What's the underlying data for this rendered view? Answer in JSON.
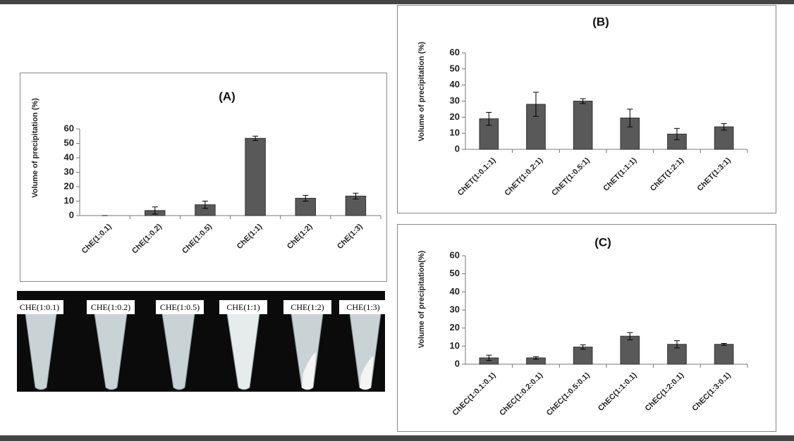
{
  "chart_data": [
    {
      "type": "bar",
      "title": "(A)",
      "y_label": "Volume of precipitation (%)",
      "categories": [
        "ChE(1:0.1)",
        "ChE(1:0.2)",
        "ChE(1:0.5)",
        "ChE(1:1)",
        "ChE(1:2)",
        "ChE(1:3)"
      ],
      "values": [
        0,
        3.5,
        7.5,
        53.5,
        12,
        13.5
      ],
      "errors": [
        0,
        2.5,
        2.5,
        1.5,
        2,
        2
      ],
      "color": "#595959",
      "ylim": [
        0,
        60
      ],
      "yticks": [
        0,
        10,
        20,
        30,
        40,
        50,
        60
      ]
    },
    {
      "type": "bar",
      "title": "(B)",
      "y_label": "Volume of precipitation (%)",
      "categories": [
        "ChET(1:0.1:1)",
        "ChET(1:0.2:1)",
        "ChET(1:0.5:1)",
        "ChET(1:1:1)",
        "ChET(1:2:1)",
        "ChET(1:3:1)"
      ],
      "values": [
        19,
        28,
        30,
        19.5,
        9.5,
        14
      ],
      "errors": [
        4,
        7.5,
        1.5,
        5.5,
        3.5,
        2
      ],
      "color": "#595959",
      "ylim": [
        0,
        60
      ],
      "yticks": [
        0,
        10,
        20,
        30,
        40,
        50,
        60
      ]
    },
    {
      "type": "bar",
      "title": "(C)",
      "y_label": "Volume of precipitation(%)",
      "categories": [
        "ChEC(1:0.1:0.1)",
        "ChEC(1:0.2:0.1)",
        "ChEC(1:0.5:0.1)",
        "ChEC(1:1:0.1)",
        "ChEC(1:2:0.1)",
        "ChEC(1:3:0.1)"
      ],
      "values": [
        3.5,
        3.5,
        9.5,
        15.5,
        11,
        11
      ],
      "errors": [
        1.5,
        0.7,
        1.2,
        2,
        2,
        0.5
      ],
      "color": "#595959",
      "ylim": [
        0,
        60
      ],
      "yticks": [
        0,
        10,
        20,
        30,
        40,
        50,
        60
      ]
    }
  ],
  "photo": {
    "labels": [
      "CHE(1:0.1)",
      "CHE(1:0.2)",
      "CHE(1:0.5)",
      "CHE(1:1)",
      "CHE(1:2)",
      "CHE(1:3)"
    ]
  }
}
